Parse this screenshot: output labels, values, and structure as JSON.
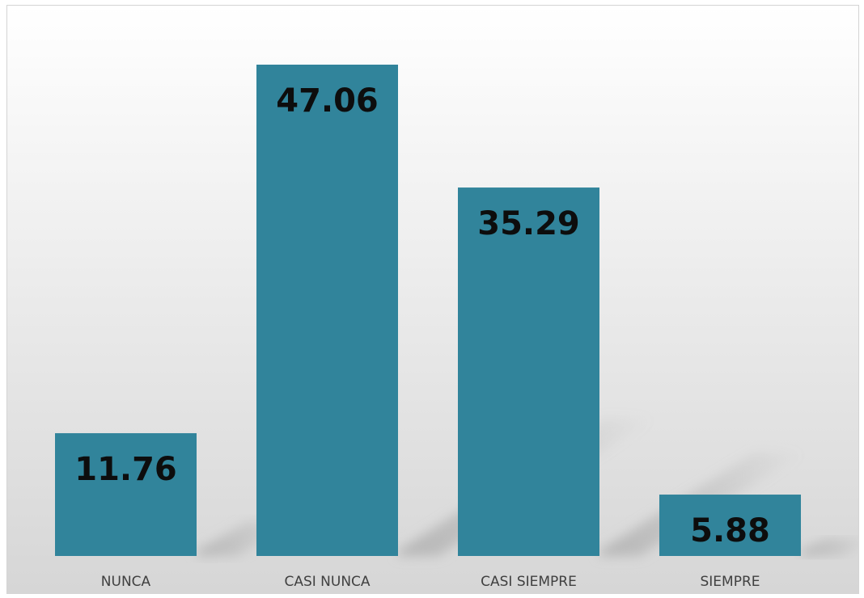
{
  "chart_data": {
    "type": "bar",
    "categories": [
      "NUNCA",
      "CASI NUNCA",
      "CASI SIEMPRE",
      "SIEMPRE"
    ],
    "values": [
      11.76,
      47.06,
      35.29,
      5.88
    ],
    "value_labels": [
      "11.76",
      "47.06",
      "35.29",
      "5.88"
    ],
    "title": "",
    "xlabel": "",
    "ylabel": "",
    "ylim": [
      0,
      47.06
    ],
    "grid": false,
    "legend": "none",
    "bar_color": "#31849b",
    "shadow_color": "#b0b0b0",
    "background_top": "#ffffff",
    "background_bottom": "#d6d6d6"
  }
}
